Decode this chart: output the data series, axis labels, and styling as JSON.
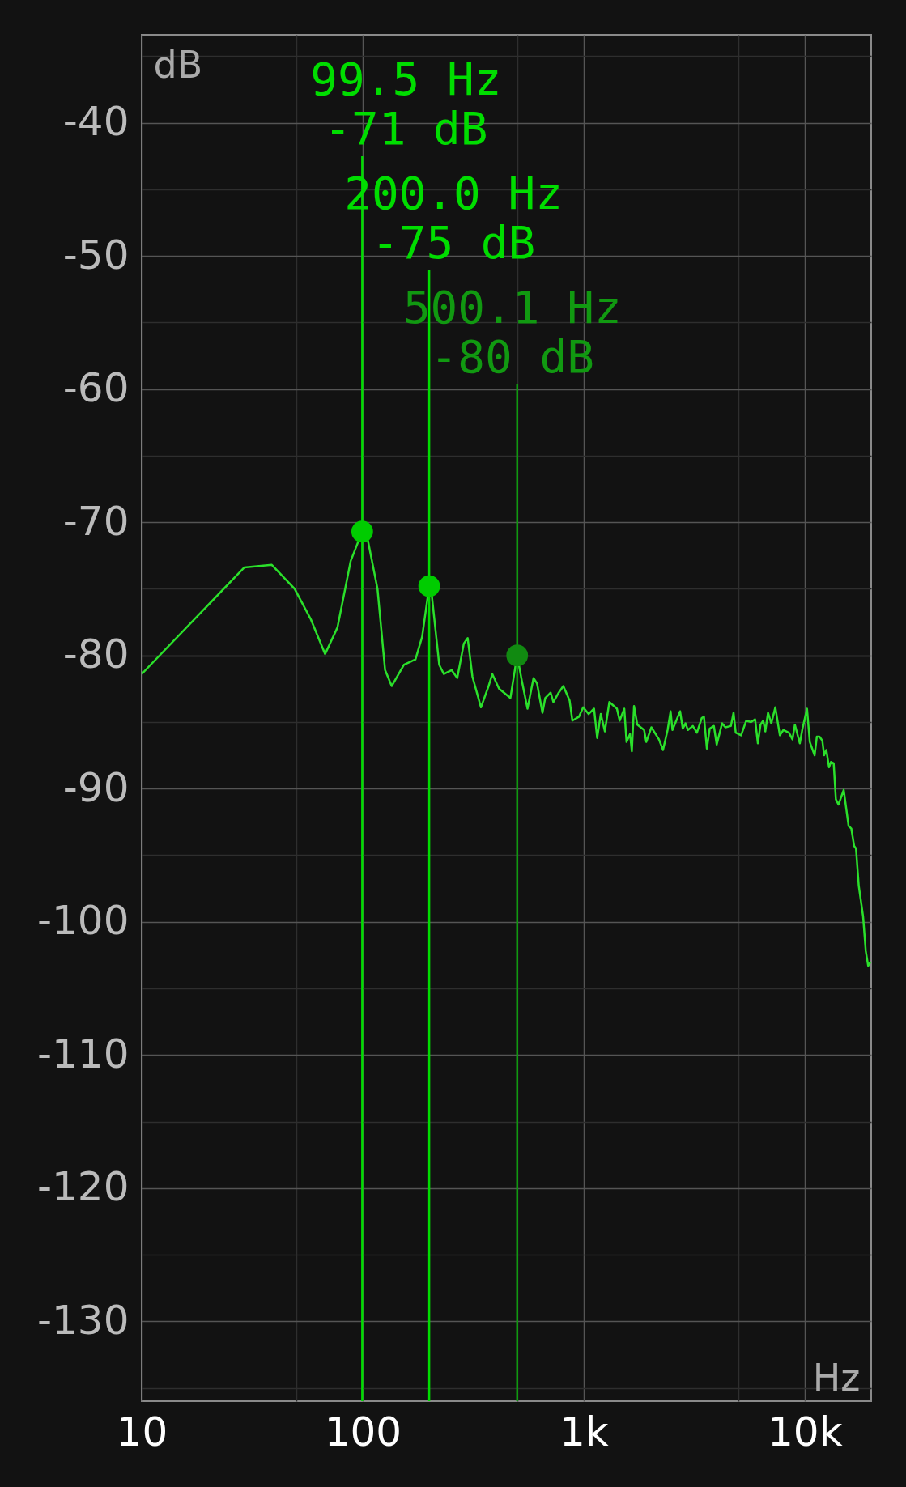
{
  "chart_data": {
    "type": "line",
    "xlabel": "Hz",
    "ylabel": "dB",
    "log": "x",
    "grid": true,
    "xlim": [
      10,
      20000
    ],
    "ylim": [
      -136,
      -33.4
    ],
    "xticks": [
      10,
      {
        "value": 50,
        "label": null
      },
      100,
      {
        "value": 500,
        "label": null
      },
      {
        "value": 1000,
        "label": "1k"
      },
      {
        "value": 5000,
        "label": null
      },
      {
        "value": 10000,
        "label": "10k"
      }
    ],
    "yticks": [
      -130,
      {
        "value": -135,
        "label": null
      },
      {
        "value": -125,
        "label": null
      },
      -120,
      {
        "value": -115,
        "label": null
      },
      -110,
      {
        "value": -105,
        "label": null
      },
      -100,
      {
        "value": -95,
        "label": null
      },
      -90,
      {
        "value": -85,
        "label": null
      },
      -80,
      {
        "value": -75,
        "label": null
      },
      -70,
      {
        "value": -65,
        "label": null
      },
      -60,
      {
        "value": -55,
        "label": null
      },
      -50,
      {
        "value": -45,
        "label": null
      },
      -40,
      {
        "value": -35,
        "label": null
      }
    ],
    "series": [
      {
        "color": "#2be02b",
        "x": [
          10,
          29.1,
          38.8,
          49.2,
          58.3,
          67.6,
          76.9,
          88.3,
          99.5,
          105.7,
          116.7,
          126.3,
          135.3,
          153.8,
          173.3,
          185.8,
          200,
          205.2,
          222,
          233,
          252.6,
          267.8,
          287,
          298.7,
          313.8,
          343,
          371.3,
          386,
          414,
          466,
          500.1,
          525,
          557,
          593,
          615,
          651,
          670,
          709,
          729,
          771,
          809,
          864,
          889,
          953,
          995,
          1052,
          1114,
          1151,
          1195,
          1247,
          1307,
          1414,
          1455,
          1527,
          1563,
          1621,
          1652,
          1690,
          1749,
          1877,
          1920,
          2025,
          2191,
          2286,
          2398,
          2474,
          2522,
          2731,
          2808,
          2889,
          2963,
          3119,
          3254,
          3423,
          3502,
          3610,
          3719,
          3884,
          3999,
          4230,
          4378,
          4636,
          4766,
          4876,
          5157,
          5438,
          5719,
          5966,
          6140,
          6311,
          6491,
          6636,
          6826,
          7062,
          7366,
          7723,
          8015,
          8487,
          8807,
          9032,
          9507,
          9775,
          10250,
          10550,
          11090,
          11350,
          11670,
          12020,
          12250,
          12530,
          12890,
          13150,
          13530,
          13840,
          14230,
          15020,
          15800,
          16260,
          16740,
          17070,
          17570,
          18380,
          18900,
          19380,
          19880
        ],
        "values": [
          -81.4,
          -73.4,
          -73.2,
          -75.0,
          -77.3,
          -79.9,
          -77.9,
          -72.9,
          -70.7,
          -71.4,
          -75.0,
          -81.1,
          -82.3,
          -80.7,
          -80.3,
          -78.6,
          -74.8,
          -75.4,
          -80.7,
          -81.4,
          -81.1,
          -81.7,
          -79.1,
          -78.7,
          -81.6,
          -83.9,
          -82.3,
          -81.4,
          -82.5,
          -83.2,
          -80.0,
          -81.9,
          -84.0,
          -81.7,
          -82.1,
          -84.3,
          -83.2,
          -82.8,
          -83.5,
          -82.8,
          -82.3,
          -83.4,
          -84.9,
          -84.6,
          -83.9,
          -84.4,
          -84.0,
          -86.2,
          -84.4,
          -85.7,
          -83.5,
          -84.0,
          -84.9,
          -84.0,
          -86.5,
          -85.9,
          -87.2,
          -83.8,
          -85.2,
          -85.6,
          -86.5,
          -85.4,
          -86.3,
          -87.1,
          -85.6,
          -84.2,
          -85.6,
          -84.2,
          -85.5,
          -85.1,
          -85.6,
          -85.3,
          -85.8,
          -84.7,
          -84.6,
          -87.0,
          -85.5,
          -85.3,
          -86.7,
          -85.1,
          -85.4,
          -85.3,
          -84.3,
          -85.8,
          -86.0,
          -84.9,
          -85.0,
          -84.8,
          -86.6,
          -85.2,
          -84.9,
          -85.7,
          -84.3,
          -85.1,
          -83.9,
          -86.0,
          -85.6,
          -85.8,
          -86.3,
          -85.2,
          -86.6,
          -85.5,
          -84.0,
          -86.5,
          -87.5,
          -86.1,
          -86.1,
          -86.4,
          -87.5,
          -87.1,
          -88.4,
          -88.0,
          -88.1,
          -90.8,
          -91.2,
          -90.1,
          -92.8,
          -93.0,
          -94.3,
          -94.5,
          -97.3,
          -99.6,
          -102.2,
          -103.3,
          -103.0
        ]
      },
      {
        "type": "scatter",
        "marker": "circle",
        "colors": [
          "#00cc00",
          "#00cc00",
          "#118a11"
        ],
        "x": [
          99.5,
          200.0,
          500.1
        ],
        "values": [
          -70.7,
          -74.8,
          -80.0
        ]
      }
    ],
    "ref_lines": [
      {
        "axis": "x",
        "value": 99.5,
        "color": "#00dd00"
      },
      {
        "axis": "x",
        "value": 200.0,
        "color": "#00dd00"
      },
      {
        "axis": "x",
        "value": 500.1,
        "color": "#119911"
      }
    ],
    "annotations": [
      "99.5 Hz\n-71 dB",
      "200.0 Hz\n-75 dB",
      "500.1 Hz\n-80 dB"
    ]
  }
}
